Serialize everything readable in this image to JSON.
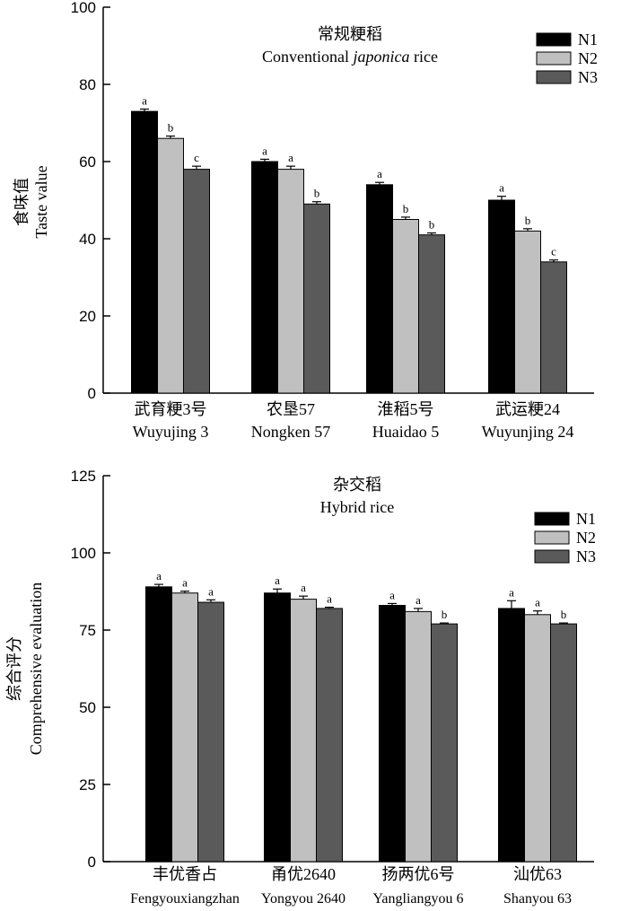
{
  "colors": {
    "N1": "#000000",
    "N2": "#c0c0c0",
    "N3": "#5a5a5a",
    "axis": "#000000"
  },
  "chart_data": [
    {
      "type": "bar",
      "title_cn": "常规粳稻",
      "title_en_pre": "Conventional ",
      "title_en_italic": "japonica",
      "title_en_post": " rice",
      "ylabel_cn": "食味值",
      "ylabel_en": "Taste value",
      "ylim": [
        0,
        100
      ],
      "yticks": [
        0,
        20,
        40,
        60,
        80,
        100
      ],
      "categories_cn": [
        "武育粳3号",
        "农垦57",
        "淮稻5号",
        "武运粳24"
      ],
      "categories_en": [
        "Wuyujing 3",
        "Nongken 57",
        "Huaidao 5",
        "Wuyunjing 24"
      ],
      "legend": [
        "N1",
        "N2",
        "N3"
      ],
      "legend_position": "top-right",
      "series": [
        {
          "name": "N1",
          "values": [
            73,
            60,
            54,
            50
          ],
          "errors": [
            0.6,
            0.6,
            0.6,
            1.0
          ],
          "letters": [
            "a",
            "a",
            "a",
            "a"
          ]
        },
        {
          "name": "N2",
          "values": [
            66,
            58,
            45,
            42
          ],
          "errors": [
            0.6,
            0.8,
            0.6,
            0.6
          ],
          "letters": [
            "b",
            "a",
            "b",
            "b"
          ]
        },
        {
          "name": "N3",
          "values": [
            58,
            49,
            41,
            34
          ],
          "errors": [
            0.8,
            0.6,
            0.5,
            0.5
          ],
          "letters": [
            "c",
            "b",
            "b",
            "c"
          ]
        }
      ]
    },
    {
      "type": "bar",
      "title_cn": "杂交稻",
      "title_en": "Hybrid rice",
      "ylabel_cn": "综合评分",
      "ylabel_en": "Comprehensive evaluation",
      "ylim": [
        0,
        125
      ],
      "yticks": [
        0,
        25,
        50,
        75,
        100,
        125
      ],
      "categories_cn": [
        "丰优香占",
        "甬优2640",
        "扬两优6号",
        "汕优63"
      ],
      "categories_en": [
        "Fengyouxiangzhan",
        "Yongyou 2640",
        "Yangliangyou 6",
        "Shanyou 63"
      ],
      "legend": [
        "N1",
        "N2",
        "N3"
      ],
      "legend_position": "top-right",
      "series": [
        {
          "name": "N1",
          "values": [
            89,
            87,
            83,
            82
          ],
          "errors": [
            0.8,
            1.3,
            0.6,
            2.5
          ],
          "letters": [
            "a",
            "a",
            "a",
            "a"
          ]
        },
        {
          "name": "N2",
          "values": [
            87,
            85,
            81,
            80
          ],
          "errors": [
            0.6,
            1.0,
            1.0,
            1.2
          ],
          "letters": [
            "a",
            "a",
            "a",
            "a"
          ]
        },
        {
          "name": "N3",
          "values": [
            84,
            82,
            77,
            77
          ],
          "errors": [
            0.8,
            0.4,
            0.3,
            0.3
          ],
          "letters": [
            "a",
            "a",
            "b",
            "b"
          ]
        }
      ]
    }
  ]
}
